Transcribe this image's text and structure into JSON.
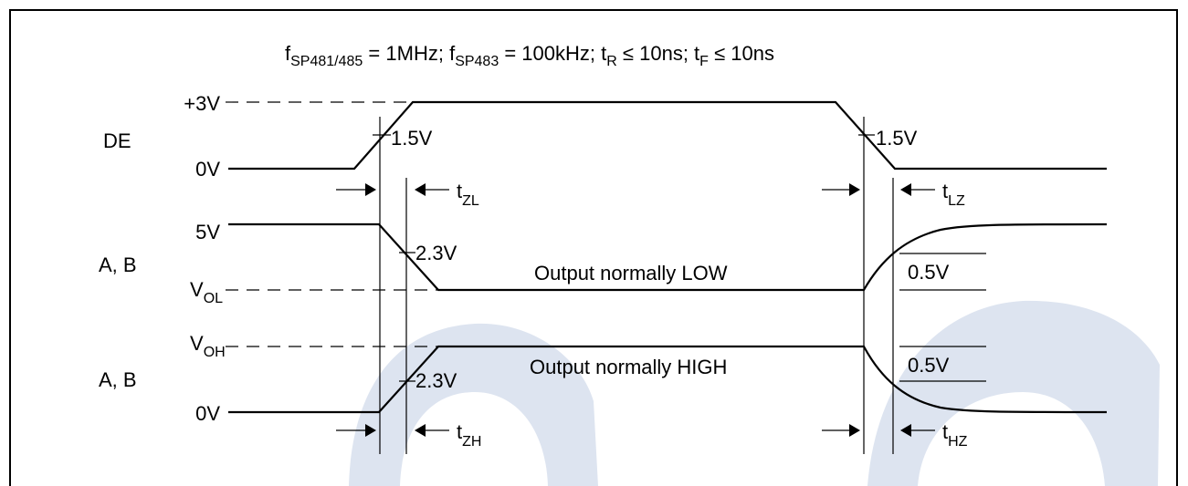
{
  "condition": {
    "f1_sym": "f",
    "f1_sub": "SP481/485",
    "f1_val": " = 1MHz; ",
    "f2_sym": "f",
    "f2_sub": "SP483",
    "f2_val": " = 100kHz; ",
    "tr_sym": "t",
    "tr_sub": "R",
    "tr_val": " ≤ 10ns; ",
    "tf_sym": "t",
    "tf_sub": "F",
    "tf_val": " ≤ 10ns"
  },
  "signals": {
    "de": "DE",
    "ab_low": "A, B",
    "ab_high": "A, B"
  },
  "levels": {
    "plus3v": "+3V",
    "de_0v": "0V",
    "five_v": "5V",
    "vol_sym": "V",
    "vol_sub": "OL",
    "voh_sym": "V",
    "voh_sub": "OH",
    "bottom_0v": "0V"
  },
  "thresholds": {
    "de_rise": "1.5V",
    "de_fall": "1.5V",
    "low_cross": "2.3V",
    "high_cross": "2.3V",
    "low_delta": "0.5V",
    "high_delta": "0.5V"
  },
  "timings": {
    "tzl_sym": "t",
    "tzl_sub": "ZL",
    "tlz_sym": "t",
    "tlz_sub": "LZ",
    "tzh_sym": "t",
    "tzh_sub": "ZH",
    "thz_sym": "t",
    "thz_sub": "HZ"
  },
  "annotations": {
    "normally_low": "Output normally LOW",
    "normally_high": "Output normally HIGH"
  }
}
